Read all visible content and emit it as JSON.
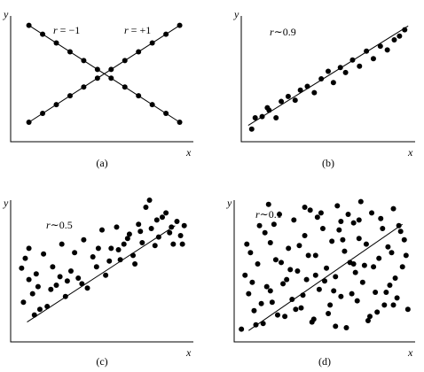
{
  "chart_data": [
    {
      "type": "scatter",
      "panel_label": "(a)",
      "xlabel": "x",
      "ylabel": "y",
      "xlim": [
        0,
        10
      ],
      "ylim": [
        0,
        10
      ],
      "series": [
        {
          "name": "r = −1",
          "x": [
            1.0,
            1.75,
            2.5,
            3.25,
            4.0,
            4.75,
            5.5,
            6.25,
            7.0,
            7.75,
            8.5,
            9.25
          ],
          "y": [
            9.25,
            8.55,
            7.85,
            7.15,
            6.45,
            5.75,
            5.05,
            4.35,
            3.65,
            2.95,
            2.25,
            1.55
          ]
        },
        {
          "name": "r = +1",
          "x": [
            1.0,
            1.75,
            2.5,
            3.25,
            4.0,
            4.75,
            5.5,
            6.25,
            7.0,
            7.75,
            8.5,
            9.25
          ],
          "y": [
            1.55,
            2.25,
            2.95,
            3.65,
            4.35,
            5.05,
            5.75,
            6.45,
            7.15,
            7.85,
            8.55,
            9.25
          ]
        }
      ],
      "line_labels": [
        "r = −1",
        "r = +1"
      ],
      "lines": [
        {
          "x": [
            1.0,
            9.25
          ],
          "y": [
            9.25,
            1.55
          ]
        },
        {
          "x": [
            1.0,
            9.25
          ],
          "y": [
            1.55,
            9.25
          ]
        }
      ],
      "grid": false
    },
    {
      "type": "scatter",
      "panel_label": "(b)",
      "xlabel": "x",
      "ylabel": "y",
      "annotation": "r∼0.9",
      "xlim": [
        0,
        10
      ],
      "ylim": [
        0,
        10
      ],
      "x": [
        0.6,
        0.8,
        1.2,
        1.6,
        2.0,
        2.3,
        2.7,
        3.1,
        3.4,
        3.8,
        4.2,
        4.6,
        5.0,
        5.3,
        5.7,
        6.0,
        6.4,
        6.8,
        7.2,
        7.6,
        8.0,
        8.4,
        8.8,
        9.1,
        9.4,
        1.5
      ],
      "y": [
        1.0,
        1.9,
        2.0,
        2.5,
        1.9,
        3.2,
        3.6,
        3.3,
        4.1,
        4.4,
        3.9,
        5.0,
        5.6,
        4.7,
        5.9,
        5.5,
        6.5,
        6.0,
        7.2,
        6.6,
        7.6,
        7.3,
        8.1,
        8.4,
        8.9,
        2.7
      ],
      "fit_line": {
        "x": [
          0.4,
          9.6
        ],
        "y": [
          1.3,
          9.2
        ]
      },
      "grid": false
    },
    {
      "type": "scatter",
      "panel_label": "(c)",
      "xlabel": "x",
      "ylabel": "y",
      "annotation": "r∼0.5",
      "xlim": [
        0,
        10
      ],
      "ylim": [
        0,
        10
      ],
      "x": [
        0.6,
        0.8,
        1.0,
        1.2,
        1.4,
        1.0,
        0.7,
        1.5,
        1.8,
        2.0,
        2.3,
        2.5,
        2.8,
        3.0,
        3.3,
        3.5,
        3.7,
        4.0,
        4.2,
        4.5,
        4.7,
        5.0,
        5.2,
        5.5,
        5.8,
        6.0,
        6.2,
        6.5,
        6.7,
        7.0,
        7.2,
        7.4,
        7.7,
        7.9,
        8.1,
        8.3,
        8.5,
        8.7,
        8.9,
        9.1,
        9.3,
        9.5,
        2.2,
        3.9,
        5.4,
        6.8,
        8.0,
        1.6,
        2.7,
        4.8,
        6.4,
        7.6,
        8.8,
        9.4,
        3.1,
        5.9,
        7.1,
        1.3
      ],
      "y": [
        5.2,
        5.9,
        4.4,
        3.4,
        4.8,
        6.6,
        2.8,
        3.9,
        6.2,
        2.5,
        5.3,
        4.0,
        6.9,
        3.2,
        5.0,
        6.3,
        4.5,
        7.2,
        3.8,
        6.0,
        5.3,
        7.9,
        4.7,
        6.6,
        8.1,
        5.8,
        6.9,
        7.6,
        6.1,
        8.3,
        7.0,
        9.5,
        8.0,
        6.8,
        7.4,
        8.8,
        9.1,
        7.7,
        6.9,
        8.5,
        7.5,
        8.2,
        3.7,
        4.1,
        5.7,
        5.5,
        8.6,
        2.3,
        4.6,
        6.6,
        7.3,
        10.0,
        8.1,
        6.9,
        4.3,
        6.5,
        7.8,
        1.9
      ],
      "fit_line": {
        "x": [
          0.9,
          9.0
        ],
        "y": [
          1.4,
          8.2
        ]
      },
      "grid": false
    },
    {
      "type": "scatter",
      "panel_label": "(d)",
      "xlabel": "x",
      "ylabel": "y",
      "annotation": "r∼0.1",
      "xlim": [
        0,
        10
      ],
      "ylim": [
        0,
        10
      ],
      "x": [
        0.4,
        0.6,
        0.8,
        0.9,
        1.1,
        1.3,
        1.4,
        1.6,
        1.8,
        2.0,
        2.1,
        2.3,
        2.5,
        2.7,
        2.8,
        3.0,
        3.2,
        3.3,
        3.5,
        3.7,
        3.9,
        4.0,
        4.2,
        4.4,
        4.5,
        4.7,
        4.9,
        5.1,
        5.2,
        5.4,
        5.6,
        5.7,
        5.9,
        6.1,
        6.2,
        6.4,
        6.6,
        6.8,
        6.9,
        7.1,
        7.3,
        7.4,
        7.6,
        7.8,
        8.0,
        8.1,
        8.3,
        8.5,
        8.6,
        8.8,
        9.0,
        9.2,
        9.3,
        9.5,
        1.0,
        1.7,
        2.4,
        3.1,
        3.8,
        4.6,
        5.3,
        6.0,
        6.7,
        7.5,
        8.2,
        8.9,
        9.6,
        0.7,
        1.5,
        2.2,
        2.9,
        3.6,
        4.3,
        5.0,
        5.8,
        6.5,
        7.2,
        7.9,
        8.7,
        9.4,
        1.2,
        2.6,
        4.1,
        5.5,
        6.3,
        7.7,
        9.1,
        3.4,
        4.8,
        6.9,
        8.4,
        1.9,
        5.6,
        7.0,
        2.0,
        4.5,
        6.6,
        8.8,
        3.9,
        5.9
      ],
      "y": [
        0.9,
        4.7,
        3.4,
        6.3,
        2.2,
        5.5,
        8.2,
        1.3,
        3.9,
        7.0,
        2.8,
        5.8,
        9.0,
        4.1,
        1.8,
        6.6,
        3.0,
        8.6,
        5.0,
        2.4,
        7.5,
        4.4,
        9.3,
        1.6,
        6.1,
        3.7,
        8.0,
        5.2,
        2.0,
        7.1,
        4.6,
        9.6,
        3.2,
        6.4,
        1.0,
        5.6,
        8.4,
        2.9,
        7.3,
        4.2,
        6.9,
        1.5,
        9.1,
        3.5,
        5.9,
        8.7,
        2.6,
        6.7,
        4.0,
        9.4,
        3.1,
        7.8,
        5.3,
        6.1,
        4.2,
        7.7,
        1.9,
        5.1,
        3.3,
        8.8,
        2.6,
        7.2,
        4.9,
        1.8,
        8.0,
        4.5,
        2.3,
        6.9,
        2.7,
        8.3,
        4.4,
        6.8,
        1.4,
        4.3,
        7.9,
        3.4,
        5.4,
        2.1,
        6.3,
        7.2,
        1.2,
        5.6,
        6.1,
        3.6,
        9.0,
        5.3,
        8.2,
        2.3,
        9.1,
        8.6,
        3.5,
        9.7,
        1.1,
        9.9,
        3.6,
        4.7,
        5.5,
        2.6,
        9.5,
        8.5
      ],
      "fit_line": {
        "x": [
          0.8,
          9.3
        ],
        "y": [
          0.8,
          8.3
        ]
      },
      "grid": false
    }
  ]
}
